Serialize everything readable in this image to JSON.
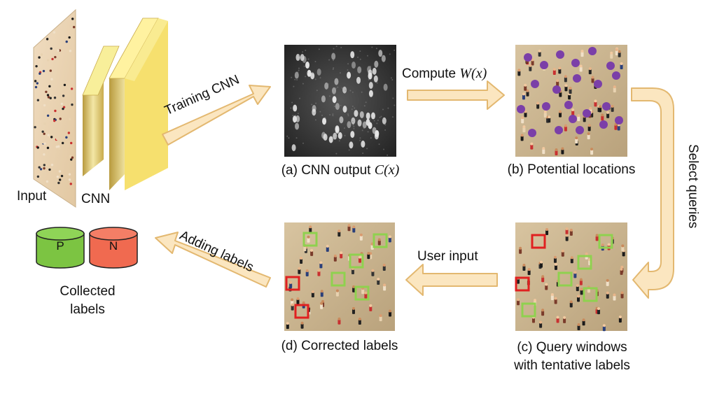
{
  "input_label": "Input",
  "cnn_label": "CNN",
  "training_arrow_label": "Training CNN",
  "compute_arrow": {
    "text": "Compute",
    "math": "W(x)"
  },
  "panel_a": {
    "text": "(a) CNN output",
    "math": "C(x)"
  },
  "panel_b": {
    "text": "(b) Potential locations"
  },
  "select_queries_label": "Select queries",
  "user_input_label": "User input",
  "panel_c": {
    "line1": "(c) Query windows",
    "line2": "with tentative labels"
  },
  "panel_d": {
    "text": "(d) Corrected labels"
  },
  "adding_labels_label": "Adding labels",
  "labels_store": {
    "positive": "P",
    "negative": "N",
    "caption_line1": "Collected",
    "caption_line2": "labels"
  },
  "colors": {
    "arrow_fill": "#fbe6c0",
    "arrow_stroke": "#e3b870",
    "cnn_block": "#f5e06a",
    "cnn_block_side": "#c8a84a",
    "positive_cylinder": "#7cc442",
    "negative_cylinder": "#f06a50",
    "potential_marker": "#7b3fa8",
    "positive_window": "#8fd14f",
    "negative_window": "#e02020",
    "sand": "#cbb592"
  },
  "icons": [
    "training-arrow",
    "compute-arrow",
    "select-queries-arrow",
    "user-input-arrow",
    "adding-labels-arrow",
    "positive-label-cylinder",
    "negative-label-cylinder"
  ]
}
